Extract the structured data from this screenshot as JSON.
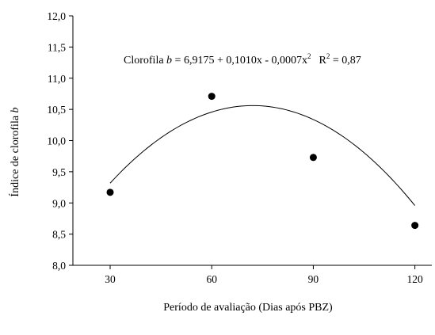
{
  "chart_data": {
    "type": "scatter",
    "xlabel": "Período de avaliação (Dias após PBZ)",
    "ylabel_main": "Índice de clorofila ",
    "ylabel_italic": "b",
    "x_ticks": [
      "30",
      "60",
      "90",
      "120"
    ],
    "y_ticks": [
      "8,0",
      "8,5",
      "9,0",
      "9,5",
      "10,0",
      "10,5",
      "11,0",
      "11,5",
      "12,0"
    ],
    "xlim": [
      19,
      125
    ],
    "ylim": [
      8.0,
      12.0
    ],
    "grid": false,
    "points": [
      {
        "x": 30,
        "y": 9.17
      },
      {
        "x": 60,
        "y": 10.71
      },
      {
        "x": 90,
        "y": 9.73
      },
      {
        "x": 120,
        "y": 8.64
      }
    ],
    "fit": {
      "type": "quadratic",
      "b0": 6.9175,
      "b1": 0.101,
      "b2": -0.0007,
      "x_range": [
        30,
        120
      ]
    },
    "annotation": {
      "prefix": "Clorofila ",
      "italic": "b",
      "equation": " = 6,9175 + 0,1010x - 0,0007x",
      "power": "2",
      "r_label": "R",
      "r_power": "2",
      "r_value": " = 0,87"
    }
  }
}
